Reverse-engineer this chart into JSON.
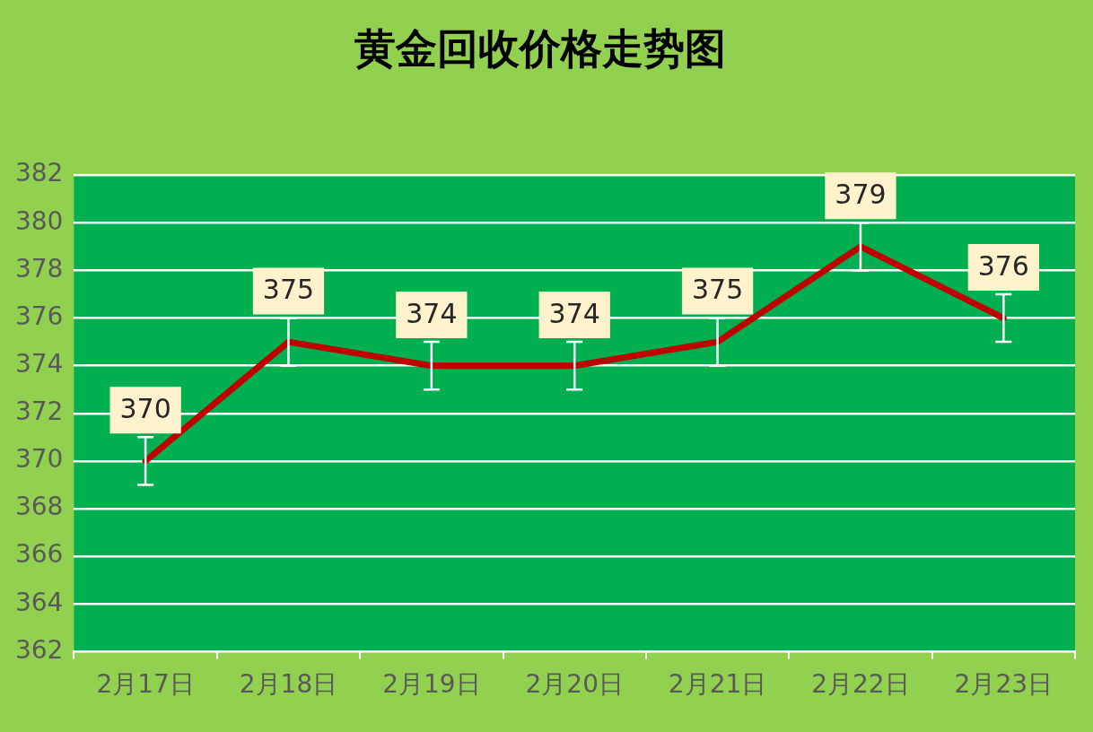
{
  "chart_data": {
    "type": "line",
    "title": "黄金回收价格走势图",
    "categories": [
      "2月17日",
      "2月18日",
      "2月19日",
      "2月20日",
      "2月21日",
      "2月22日",
      "2月23日"
    ],
    "series": [
      {
        "color": "#c00000",
        "values": [
          370,
          375,
          374,
          374,
          375,
          379,
          376
        ],
        "errors": [
          1,
          1,
          1,
          1,
          1,
          1,
          1
        ]
      }
    ],
    "ylim": [
      362,
      382
    ],
    "yticks": [
      362,
      364,
      366,
      368,
      370,
      372,
      374,
      376,
      378,
      380,
      382
    ],
    "grid": "y",
    "legend": false,
    "marker": "none",
    "line_style": "solid",
    "data_labels": true
  }
}
